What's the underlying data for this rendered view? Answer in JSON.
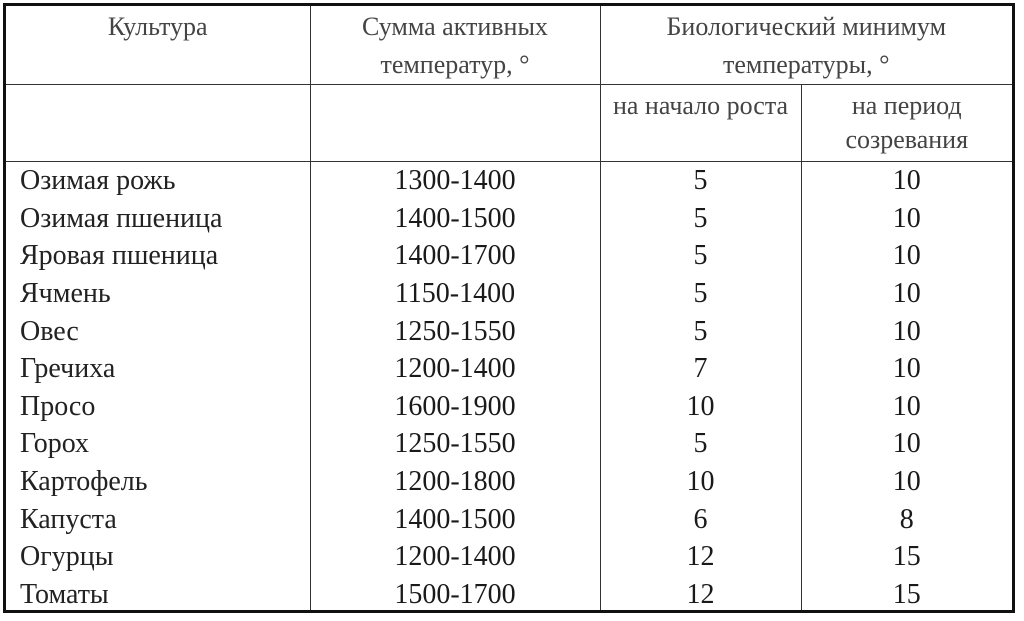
{
  "table": {
    "headers": {
      "crop": "Культура",
      "active_sum": "Сумма активных температур, °",
      "bio_min": "Биологический минимум температуры, °",
      "bio_start": "на начало роста",
      "bio_ripening": "на период созревания"
    },
    "rows": [
      {
        "crop": "Озимая рожь",
        "sum": "1300-1400",
        "start": "5",
        "ripening": "10"
      },
      {
        "crop": "Озимая пшеница",
        "sum": "1400-1500",
        "start": "5",
        "ripening": "10"
      },
      {
        "crop": "Яровая пшеница",
        "sum": "1400-1700",
        "start": "5",
        "ripening": "10"
      },
      {
        "crop": "Ячмень",
        "sum": "1150-1400",
        "start": "5",
        "ripening": "10"
      },
      {
        "crop": "Овес",
        "sum": "1250-1550",
        "start": "5",
        "ripening": "10"
      },
      {
        "crop": "Гречиха",
        "sum": "1200-1400",
        "start": "7",
        "ripening": "10"
      },
      {
        "crop": "Просо",
        "sum": "1600-1900",
        "start": "10",
        "ripening": "10"
      },
      {
        "crop": "Горох",
        "sum": "1250-1550",
        "start": "5",
        "ripening": "10"
      },
      {
        "crop": "Картофель",
        "sum": "1200-1800",
        "start": "10",
        "ripening": "10"
      },
      {
        "crop": "Капуста",
        "sum": "1400-1500",
        "start": "6",
        "ripening": "8"
      },
      {
        "crop": "Огурцы",
        "sum": "1200-1400",
        "start": "12",
        "ripening": "15"
      },
      {
        "crop": "Томаты",
        "sum": "1500-1700",
        "start": "12",
        "ripening": "15"
      }
    ]
  }
}
